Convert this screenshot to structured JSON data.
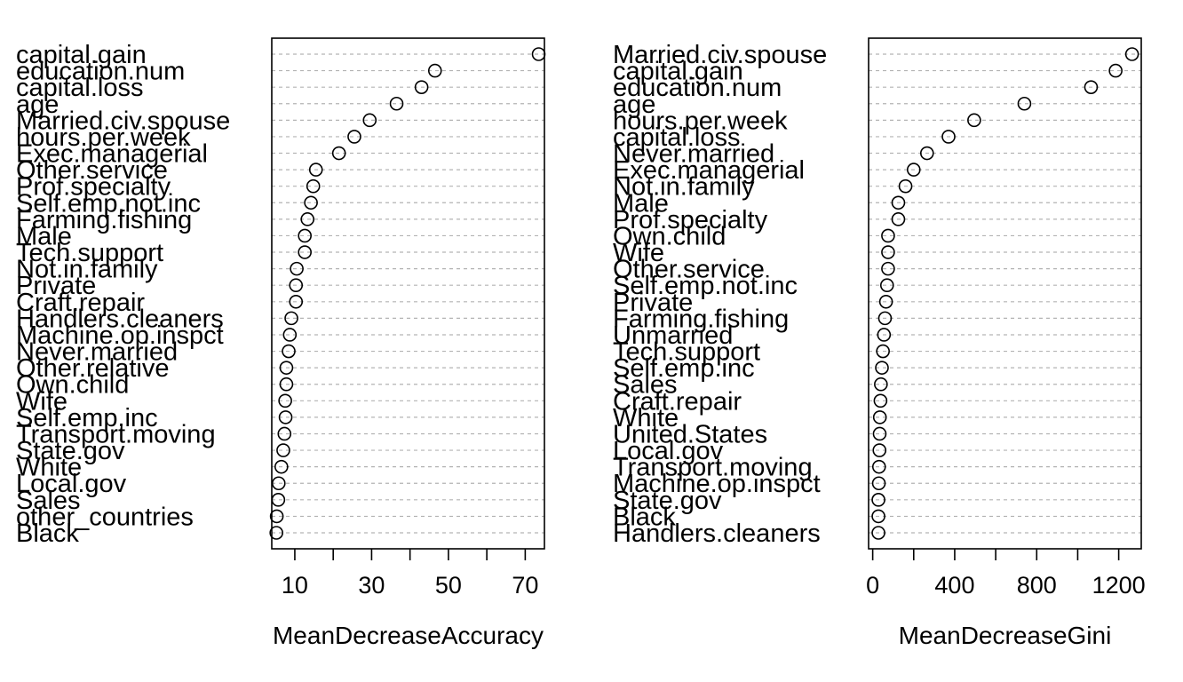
{
  "chart_data": [
    {
      "type": "scatter",
      "subtype": "dotchart",
      "xlabel": "MeanDecreaseAccuracy",
      "xlim": [
        4,
        75
      ],
      "xticks": [
        10,
        30,
        50,
        70
      ],
      "xticks_minor": [
        10,
        20,
        30,
        40,
        50,
        60,
        70
      ],
      "grid": "horizontal dotted",
      "categories": [
        "capital.gain",
        "education.num",
        "capital.loss",
        "age",
        "Married.civ.spouse",
        "hours.per.week",
        "Exec.managerial",
        "Other.service",
        "Prof.specialty",
        "Self.emp.not.inc",
        "Farming.fishing",
        "Male",
        "Tech.support",
        "Not.in.family",
        "Private",
        "Craft.repair",
        "Handlers.cleaners",
        "Machine.op.inspct",
        "Never.married",
        "Other.relative",
        "Own.child",
        "Wife",
        "Self.emp.inc",
        "Transport.moving",
        "State.gov",
        "White",
        "Local.gov",
        "Sales",
        "other_countries",
        "Black"
      ],
      "values": [
        73.5,
        46.5,
        43,
        36.5,
        29.5,
        25.5,
        21.5,
        15.5,
        14.8,
        14.2,
        13.3,
        12.6,
        12.6,
        10.5,
        10.3,
        10.3,
        9.1,
        8.7,
        8.4,
        7.8,
        7.8,
        7.5,
        7.6,
        7.3,
        7.0,
        6.5,
        5.8,
        5.7,
        5.3,
        5.2
      ]
    },
    {
      "type": "scatter",
      "subtype": "dotchart",
      "xlabel": "MeanDecreaseGini",
      "xlim": [
        -20,
        1310
      ],
      "xticks": [
        0,
        400,
        800,
        1200
      ],
      "xticks_minor": [
        0,
        200,
        400,
        600,
        800,
        1000,
        1200
      ],
      "grid": "horizontal dotted",
      "categories": [
        "Married.civ.spouse",
        "capital.gain",
        "education.num",
        "age",
        "hours.per.week",
        "capital.loss",
        "Never.married",
        "Exec.managerial",
        "Not.in.family",
        "Male",
        "Prof.specialty",
        "Own.child",
        "Wife",
        "Other.service",
        "Self.emp.not.inc",
        "Private",
        "Farming.fishing",
        "Unmarried",
        "Tech.support",
        "Self.emp.inc",
        "Sales",
        "Craft.repair",
        "White",
        "United.States",
        "Local.gov",
        "Transport.moving",
        "Machine.op.inspct",
        "State.gov",
        "Black",
        "Handlers.cleaners"
      ],
      "values": [
        1265,
        1185,
        1065,
        740,
        495,
        370,
        265,
        200,
        160,
        125,
        125,
        75,
        75,
        75,
        70,
        65,
        60,
        55,
        50,
        45,
        40,
        38,
        35,
        34,
        33,
        31,
        30,
        28,
        28,
        28
      ]
    }
  ]
}
